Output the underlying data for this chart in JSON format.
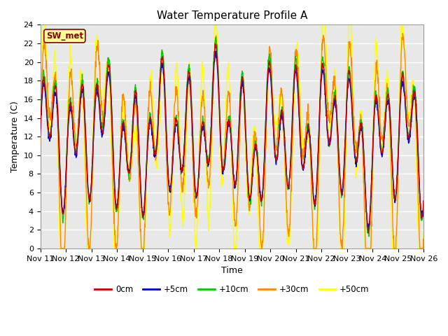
{
  "title": "Water Temperature Profile A",
  "xlabel": "Time",
  "ylabel": "Temperature (C)",
  "ylim": [
    0,
    24
  ],
  "yticks": [
    0,
    2,
    4,
    6,
    8,
    10,
    12,
    14,
    16,
    18,
    20,
    22,
    24
  ],
  "x_labels": [
    "Nov 11",
    "Nov 12",
    "Nov 13",
    "Nov 14",
    "Nov 15",
    "Nov 16",
    "Nov 17",
    "Nov 18",
    "Nov 19",
    "Nov 20",
    "Nov 21",
    "Nov 22",
    "Nov 23",
    "Nov 24",
    "Nov 25",
    "Nov 26"
  ],
  "legend_labels": [
    "0cm",
    "+5cm",
    "+10cm",
    "+30cm",
    "+50cm"
  ],
  "colors": {
    "0cm": "#cc0000",
    "+5cm": "#0000cc",
    "+10cm": "#00cc00",
    "+30cm": "#ff8800",
    "+50cm": "#ffff00"
  },
  "annotation_text": "SW_met",
  "annotation_color": "#8b0000",
  "annotation_bg": "#ffff99",
  "annotation_border": "#8b0000",
  "background_color": "#e8e8e8",
  "grid_color": "#ffffff",
  "title_fontsize": 11,
  "axis_fontsize": 9,
  "tick_fontsize": 8,
  "line_width": 1.0,
  "figsize": [
    6.4,
    4.8
  ],
  "dpi": 100
}
